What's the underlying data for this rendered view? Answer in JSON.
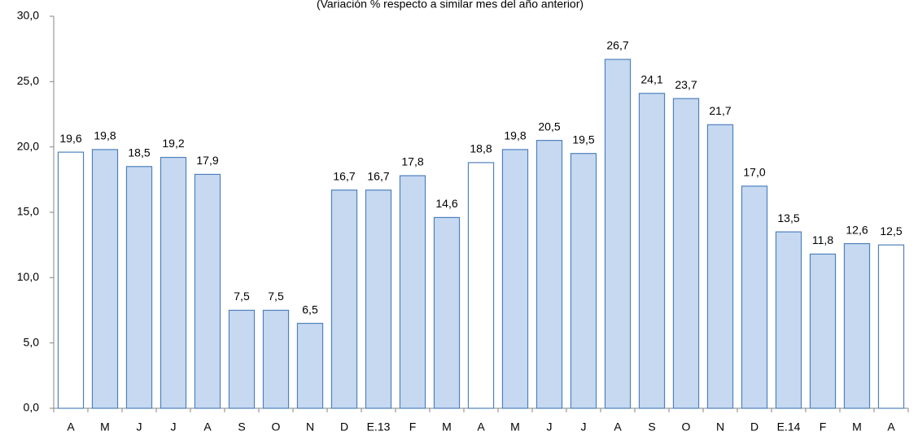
{
  "chart_data": {
    "type": "bar",
    "subtitle": "(Variación % respecto a similar mes del año anterior)",
    "categories": [
      "A",
      "M",
      "J",
      "J",
      "A",
      "S",
      "O",
      "N",
      "D",
      "E.13",
      "F",
      "M",
      "A",
      "M",
      "J",
      "J",
      "A",
      "S",
      "O",
      "N",
      "D",
      "E.14",
      "F",
      "M",
      "A"
    ],
    "values": [
      19.6,
      19.8,
      18.5,
      19.2,
      17.9,
      7.5,
      7.5,
      6.5,
      16.7,
      16.7,
      17.8,
      14.6,
      18.8,
      19.8,
      20.5,
      19.5,
      26.7,
      24.1,
      23.7,
      21.7,
      17.0,
      13.5,
      11.8,
      12.6,
      12.5
    ],
    "value_labels": [
      "19,6",
      "19,8",
      "18,5",
      "19,2",
      "17,9",
      "7,5",
      "7,5",
      "6,5",
      "16,7",
      "16,7",
      "17,8",
      "14,6",
      "18,8",
      "19,8",
      "20,5",
      "19,5",
      "26,7",
      "24,1",
      "23,7",
      "21,7",
      "17,0",
      "13,5",
      "11,8",
      "12,6",
      "12,5"
    ],
    "colors": [
      "#ffffff",
      "#c6d9f1",
      "#c6d9f1",
      "#c6d9f1",
      "#c6d9f1",
      "#c6d9f1",
      "#c6d9f1",
      "#c6d9f1",
      "#c6d9f1",
      "#c6d9f1",
      "#c6d9f1",
      "#c6d9f1",
      "#ffffff",
      "#c6d9f1",
      "#c6d9f1",
      "#c6d9f1",
      "#c6d9f1",
      "#c6d9f1",
      "#c6d9f1",
      "#c6d9f1",
      "#c6d9f1",
      "#c6d9f1",
      "#c6d9f1",
      "#c6d9f1",
      "#ffffff"
    ],
    "edge_color": "#4f81bd",
    "ylim": [
      0,
      30
    ],
    "yticks": [
      {
        "value": 0,
        "label": "0,0"
      },
      {
        "value": 5,
        "label": "5,0"
      },
      {
        "value": 10,
        "label": "10,0"
      },
      {
        "value": 15,
        "label": "15,0"
      },
      {
        "value": 20,
        "label": "20,0"
      },
      {
        "value": 25,
        "label": "25,0"
      },
      {
        "value": 30,
        "label": "30,0"
      }
    ],
    "grid": false
  }
}
